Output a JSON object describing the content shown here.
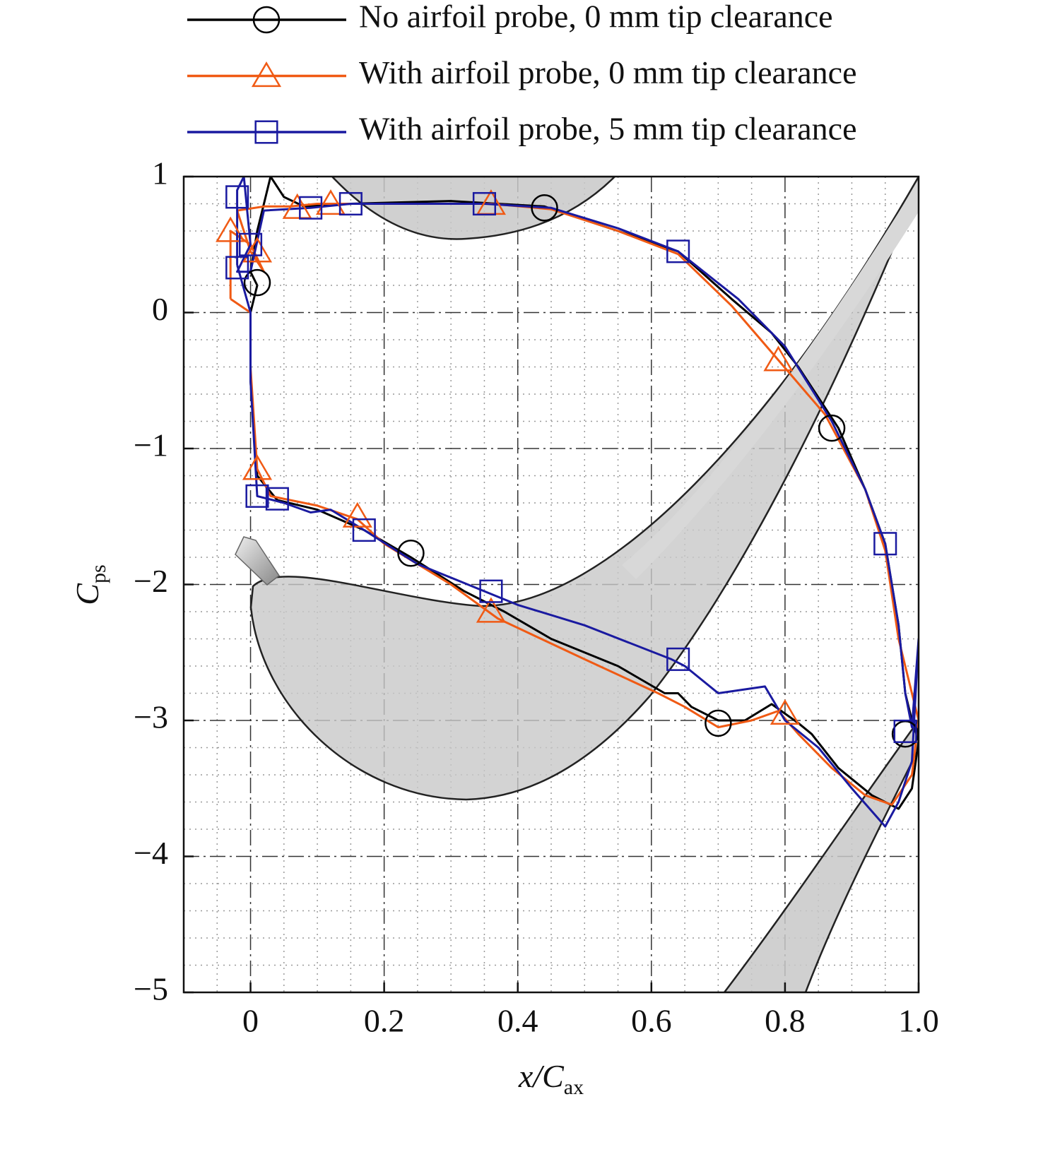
{
  "chart_data": {
    "type": "line",
    "x_label": "x/C",
    "x_label_sub": "ax",
    "y_label": "C",
    "y_label_sub": "ps",
    "xlim": [
      -0.1,
      1.0
    ],
    "ylim": [
      -5,
      1
    ],
    "xticks": [
      0,
      0.2,
      0.4,
      0.6,
      0.8,
      {
        "value": 1,
        "label": "1.0"
      }
    ],
    "yticks": [
      1,
      0,
      {
        "value": -1,
        "label": "−1"
      },
      {
        "value": -2,
        "label": "−2"
      },
      {
        "value": -3,
        "label": "−3"
      },
      {
        "value": -4,
        "label": "−4"
      },
      {
        "value": -5,
        "label": "−5"
      }
    ],
    "xminorticks": [
      -0.05,
      0.05,
      0.1,
      0.15,
      0.25,
      0.3,
      0.35,
      0.45,
      0.5,
      0.55,
      0.65,
      0.7,
      0.75,
      0.85,
      0.9,
      0.95
    ],
    "yminorticks": [
      0.8,
      0.6,
      0.4,
      0.2,
      -0.2,
      -0.4,
      -0.6,
      -0.8,
      -1.2,
      -1.4,
      -1.6,
      -1.8,
      -2.2,
      -2.4,
      -2.6,
      -2.8,
      -3.2,
      -3.4,
      -3.6,
      -3.8,
      -4.2,
      -4.4,
      -4.6,
      -4.8
    ],
    "grid": true,
    "legend": "top",
    "series": [
      {
        "name": "No airfoil probe, 0 mm tip clearance",
        "color": "#000000",
        "marker": "circle",
        "x": [
          0.01,
          0.0,
          0.01,
          0.02,
          0.03,
          0.05,
          0.08,
          0.15,
          0.3,
          0.44,
          0.55,
          0.64,
          0.72,
          0.78,
          0.82,
          0.88,
          0.92,
          0.95,
          0.97,
          0.98,
          0.99,
          1.0,
          0.99,
          0.97,
          0.93,
          0.88,
          0.84,
          0.82,
          0.78,
          0.74,
          0.7,
          0.66,
          0.64,
          0.62,
          0.55,
          0.45,
          0.38,
          0.32,
          0.24,
          0.17,
          0.1,
          0.04,
          0.01,
          0.0,
          0.0,
          0.01
        ],
        "values": [
          0.2,
          0.3,
          0.6,
          0.8,
          1.0,
          0.85,
          0.78,
          0.8,
          0.82,
          0.78,
          0.6,
          0.45,
          0.1,
          -0.15,
          -0.4,
          -0.85,
          -1.3,
          -1.7,
          -2.3,
          -2.8,
          -3.0,
          -3.15,
          -3.5,
          -3.65,
          -3.55,
          -3.35,
          -3.1,
          -3.02,
          -2.88,
          -3.0,
          -3.0,
          -2.9,
          -2.8,
          -2.8,
          -2.6,
          -2.4,
          -2.2,
          -2.05,
          -1.8,
          -1.6,
          -1.45,
          -1.38,
          -1.2,
          -0.5,
          0.0,
          0.2
        ],
        "marker_x": [
          0.01,
          0.44,
          0.87,
          0.24,
          0.7,
          0.98
        ],
        "marker_values": [
          0.22,
          0.77,
          -0.85,
          -1.77,
          -3.02,
          -3.1
        ]
      },
      {
        "name": "With airfoil probe, 0 mm tip clearance",
        "color": "#f05a14",
        "marker": "triangle",
        "x": [
          -0.03,
          -0.03,
          0.0,
          0.02,
          0.0,
          -0.02,
          0.02,
          0.06,
          0.1,
          0.2,
          0.36,
          0.45,
          0.55,
          0.64,
          0.72,
          0.79,
          0.86,
          0.92,
          0.95,
          0.97,
          0.99,
          1.0,
          0.99,
          0.96,
          0.92,
          0.87,
          0.82,
          0.79,
          0.75,
          0.7,
          0.65,
          0.61,
          0.5,
          0.37,
          0.3,
          0.2,
          0.16,
          0.1,
          0.03,
          0.01,
          0.0,
          0.0,
          -0.03
        ],
        "values": [
          0.1,
          0.6,
          0.5,
          0.3,
          0.45,
          0.75,
          0.78,
          0.78,
          0.8,
          0.8,
          0.8,
          0.76,
          0.6,
          0.43,
          0.05,
          -0.35,
          -0.75,
          -1.3,
          -1.75,
          -2.4,
          -2.8,
          -3.0,
          -3.4,
          -3.62,
          -3.55,
          -3.35,
          -3.1,
          -2.93,
          -3.0,
          -3.05,
          -2.9,
          -2.8,
          -2.55,
          -2.25,
          -2.0,
          -1.7,
          -1.52,
          -1.42,
          -1.35,
          -1.15,
          -0.4,
          0.0,
          0.1
        ],
        "marker_x": [
          -0.03,
          0.01,
          0.07,
          0.12,
          0.36,
          0.79,
          0.8,
          0.36,
          0.16,
          0.01
        ],
        "marker_values": [
          0.6,
          0.45,
          0.77,
          0.8,
          0.8,
          -0.35,
          -2.95,
          -2.2,
          -1.5,
          -1.15
        ]
      },
      {
        "name": "With airfoil probe, 5 mm tip clearance",
        "color": "#1a1aa0",
        "marker": "square",
        "x": [
          -0.02,
          -0.02,
          -0.01,
          0.0,
          -0.02,
          0.0,
          0.02,
          0.09,
          0.15,
          0.35,
          0.45,
          0.55,
          0.64,
          0.73,
          0.8,
          0.87,
          0.92,
          0.95,
          0.97,
          0.98,
          0.99,
          1.0,
          0.99,
          0.97,
          0.95,
          0.9,
          0.85,
          0.8,
          0.77,
          0.7,
          0.65,
          0.63,
          0.5,
          0.4,
          0.35,
          0.25,
          0.17,
          0.12,
          0.09,
          0.05,
          0.01,
          0.0,
          0.0,
          -0.02
        ],
        "values": [
          0.35,
          0.9,
          1.0,
          0.5,
          0.3,
          0.3,
          0.75,
          0.77,
          0.8,
          0.8,
          0.77,
          0.62,
          0.45,
          0.1,
          -0.25,
          -0.8,
          -1.3,
          -1.7,
          -2.3,
          -2.8,
          -3.05,
          -2.4,
          -3.3,
          -3.6,
          -3.78,
          -3.5,
          -3.2,
          -3.0,
          -2.75,
          -2.8,
          -2.6,
          -2.55,
          -2.3,
          -2.15,
          -2.05,
          -1.85,
          -1.6,
          -1.45,
          -1.47,
          -1.4,
          -1.35,
          -0.5,
          0.0,
          0.35
        ],
        "marker_x": [
          -0.02,
          0.0,
          -0.02,
          0.09,
          0.15,
          0.35,
          0.64,
          0.95,
          0.98,
          0.64,
          0.36,
          0.17,
          0.04,
          0.01
        ],
        "marker_values": [
          0.85,
          0.5,
          0.33,
          0.77,
          0.8,
          0.8,
          0.45,
          -1.7,
          -3.08,
          -2.55,
          -2.05,
          -1.6,
          -1.37,
          -1.35
        ]
      }
    ]
  }
}
